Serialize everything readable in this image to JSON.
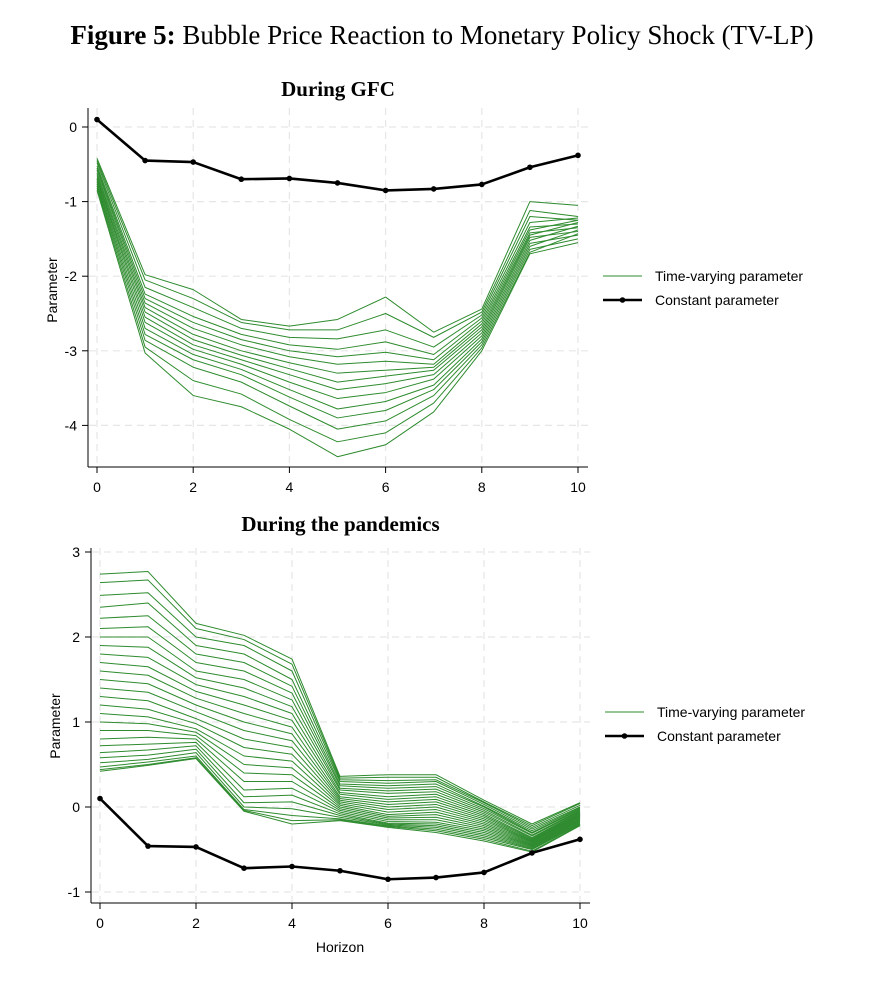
{
  "figure": {
    "label": "Figure 5:",
    "title": "Bubble Price Reaction to Monetary Policy Shock (TV-LP)"
  },
  "colors": {
    "time_varying": "#2e8b2e",
    "constant": "#000000",
    "grid": "#e6e6e6"
  },
  "chart_data": [
    {
      "type": "line",
      "title": "During GFC",
      "xlabel": "",
      "ylabel": "Parameter",
      "xlim": [
        0,
        10
      ],
      "ylim": [
        -4.55,
        0.2
      ],
      "xticks": [
        0,
        2,
        4,
        6,
        8,
        10
      ],
      "yticks": [
        0,
        -1,
        -2,
        -3,
        -4
      ],
      "grid": true,
      "legend_position": "right",
      "legend": [
        "Time-varying parameter",
        "Constant parameter"
      ],
      "x": [
        0,
        1,
        2,
        3,
        4,
        5,
        6,
        7,
        8,
        9,
        10
      ],
      "constant": {
        "name": "Constant parameter",
        "values": [
          0.1,
          -0.45,
          -0.47,
          -0.7,
          -0.69,
          -0.75,
          -0.85,
          -0.83,
          -0.77,
          -0.54,
          -0.38
        ]
      },
      "time_varying": {
        "name": "Time-varying parameter",
        "series": [
          [
            -0.42,
            -1.98,
            -2.18,
            -2.58,
            -2.67,
            -2.58,
            -2.28,
            -2.75,
            -2.44,
            -1.0,
            -1.05
          ],
          [
            -0.45,
            -2.05,
            -2.3,
            -2.62,
            -2.72,
            -2.72,
            -2.5,
            -2.82,
            -2.48,
            -1.12,
            -1.2
          ],
          [
            -0.48,
            -2.15,
            -2.42,
            -2.7,
            -2.82,
            -2.84,
            -2.72,
            -2.95,
            -2.52,
            -1.2,
            -1.25
          ],
          [
            -0.52,
            -2.24,
            -2.54,
            -2.78,
            -2.92,
            -2.98,
            -2.88,
            -3.05,
            -2.56,
            -1.28,
            -1.22
          ],
          [
            -0.55,
            -2.3,
            -2.62,
            -2.85,
            -3.0,
            -3.08,
            -3.02,
            -3.12,
            -2.6,
            -1.34,
            -1.3
          ],
          [
            -0.58,
            -2.36,
            -2.7,
            -2.92,
            -3.08,
            -3.18,
            -3.14,
            -3.18,
            -2.64,
            -1.38,
            -1.25
          ],
          [
            -0.62,
            -2.42,
            -2.78,
            -3.0,
            -3.16,
            -3.3,
            -3.26,
            -3.22,
            -2.68,
            -1.42,
            -1.35
          ],
          [
            -0.65,
            -2.48,
            -2.85,
            -3.06,
            -3.24,
            -3.42,
            -3.34,
            -3.26,
            -2.72,
            -1.45,
            -1.28
          ],
          [
            -0.68,
            -2.55,
            -2.92,
            -3.12,
            -3.32,
            -3.52,
            -3.44,
            -3.32,
            -2.76,
            -1.48,
            -1.4
          ],
          [
            -0.7,
            -2.62,
            -2.98,
            -3.18,
            -3.42,
            -3.64,
            -3.56,
            -3.38,
            -2.8,
            -1.52,
            -1.33
          ],
          [
            -0.73,
            -2.7,
            -3.05,
            -3.25,
            -3.52,
            -3.78,
            -3.68,
            -3.46,
            -2.84,
            -1.56,
            -1.45
          ],
          [
            -0.76,
            -2.78,
            -3.12,
            -3.32,
            -3.62,
            -3.9,
            -3.8,
            -3.52,
            -2.88,
            -1.6,
            -1.38
          ],
          [
            -0.79,
            -2.86,
            -3.22,
            -3.42,
            -3.74,
            -4.05,
            -3.94,
            -3.6,
            -2.92,
            -1.64,
            -1.5
          ],
          [
            -0.82,
            -2.95,
            -3.4,
            -3.58,
            -3.92,
            -4.22,
            -4.1,
            -3.7,
            -2.96,
            -1.68,
            -1.43
          ],
          [
            -0.85,
            -3.03,
            -3.6,
            -3.75,
            -4.05,
            -4.42,
            -4.26,
            -3.82,
            -3.0,
            -1.7,
            -1.55
          ]
        ]
      }
    },
    {
      "type": "line",
      "title": "During the pandemics",
      "xlabel": "Horizon",
      "ylabel": "Parameter",
      "xlim": [
        0,
        10
      ],
      "ylim": [
        -1.15,
        3.05
      ],
      "xticks": [
        0,
        2,
        4,
        6,
        8,
        10
      ],
      "yticks": [
        3,
        2,
        1,
        0,
        -1
      ],
      "grid": true,
      "legend_position": "right",
      "legend": [
        "Time-varying parameter",
        "Constant parameter"
      ],
      "x": [
        0,
        1,
        2,
        3,
        4,
        5,
        6,
        7,
        8,
        9,
        10
      ],
      "constant": {
        "name": "Constant parameter",
        "values": [
          0.1,
          -0.46,
          -0.47,
          -0.72,
          -0.7,
          -0.75,
          -0.85,
          -0.83,
          -0.77,
          -0.54,
          -0.38
        ]
      },
      "time_varying": {
        "name": "Time-varying parameter",
        "series": [
          [
            2.74,
            2.77,
            2.16,
            2.02,
            1.74,
            0.36,
            0.38,
            0.38,
            0.08,
            -0.2,
            0.05
          ],
          [
            2.64,
            2.67,
            2.1,
            1.97,
            1.68,
            0.34,
            0.35,
            0.35,
            0.06,
            -0.22,
            0.04
          ],
          [
            2.49,
            2.52,
            2.0,
            1.9,
            1.6,
            0.32,
            0.31,
            0.32,
            0.05,
            -0.24,
            0.02
          ],
          [
            2.35,
            2.4,
            1.9,
            1.8,
            1.5,
            0.3,
            0.28,
            0.3,
            0.03,
            -0.26,
            0.0
          ],
          [
            2.22,
            2.25,
            1.8,
            1.7,
            1.42,
            0.27,
            0.25,
            0.27,
            0.01,
            -0.28,
            -0.01
          ],
          [
            2.1,
            2.12,
            1.7,
            1.6,
            1.34,
            0.25,
            0.22,
            0.24,
            0.0,
            -0.3,
            -0.02
          ],
          [
            2.0,
            2.0,
            1.6,
            1.5,
            1.26,
            0.22,
            0.19,
            0.21,
            -0.02,
            -0.31,
            -0.03
          ],
          [
            1.9,
            1.88,
            1.52,
            1.4,
            1.18,
            0.2,
            0.16,
            0.18,
            -0.04,
            -0.33,
            -0.04
          ],
          [
            1.8,
            1.76,
            1.44,
            1.3,
            1.1,
            0.17,
            0.12,
            0.15,
            -0.06,
            -0.34,
            -0.05
          ],
          [
            1.7,
            1.65,
            1.36,
            1.2,
            1.02,
            0.15,
            0.09,
            0.12,
            -0.08,
            -0.36,
            -0.06
          ],
          [
            1.6,
            1.55,
            1.28,
            1.1,
            0.94,
            0.12,
            0.06,
            0.09,
            -0.1,
            -0.37,
            -0.07
          ],
          [
            1.5,
            1.45,
            1.2,
            1.0,
            0.86,
            0.1,
            0.03,
            0.06,
            -0.12,
            -0.38,
            -0.08
          ],
          [
            1.4,
            1.35,
            1.12,
            0.9,
            0.78,
            0.08,
            0.0,
            0.03,
            -0.14,
            -0.39,
            -0.09
          ],
          [
            1.3,
            1.25,
            1.04,
            0.8,
            0.7,
            0.06,
            -0.03,
            0.0,
            -0.16,
            -0.4,
            -0.1
          ],
          [
            1.2,
            1.15,
            0.98,
            0.7,
            0.62,
            0.04,
            -0.06,
            -0.03,
            -0.18,
            -0.41,
            -0.11
          ],
          [
            1.1,
            1.06,
            0.92,
            0.6,
            0.54,
            0.02,
            -0.09,
            -0.06,
            -0.2,
            -0.42,
            -0.12
          ],
          [
            1.0,
            0.98,
            0.88,
            0.5,
            0.46,
            0.0,
            -0.11,
            -0.09,
            -0.22,
            -0.43,
            -0.13
          ],
          [
            0.9,
            0.9,
            0.84,
            0.4,
            0.38,
            -0.02,
            -0.13,
            -0.12,
            -0.24,
            -0.44,
            -0.14
          ],
          [
            0.8,
            0.82,
            0.8,
            0.3,
            0.3,
            -0.04,
            -0.15,
            -0.15,
            -0.26,
            -0.45,
            -0.15
          ],
          [
            0.72,
            0.74,
            0.76,
            0.2,
            0.22,
            -0.06,
            -0.17,
            -0.18,
            -0.28,
            -0.46,
            -0.16
          ],
          [
            0.64,
            0.67,
            0.72,
            0.12,
            0.14,
            -0.08,
            -0.19,
            -0.2,
            -0.3,
            -0.47,
            -0.17
          ],
          [
            0.58,
            0.61,
            0.68,
            0.05,
            0.06,
            -0.1,
            -0.2,
            -0.22,
            -0.32,
            -0.48,
            -0.18
          ],
          [
            0.52,
            0.56,
            0.64,
            0.0,
            -0.02,
            -0.12,
            -0.21,
            -0.24,
            -0.34,
            -0.49,
            -0.19
          ],
          [
            0.47,
            0.53,
            0.6,
            -0.03,
            -0.1,
            -0.14,
            -0.22,
            -0.26,
            -0.36,
            -0.5,
            -0.2
          ],
          [
            0.44,
            0.5,
            0.58,
            -0.04,
            -0.16,
            -0.15,
            -0.23,
            -0.28,
            -0.38,
            -0.52,
            -0.21
          ],
          [
            0.42,
            0.49,
            0.57,
            -0.05,
            -0.2,
            -0.16,
            -0.24,
            -0.3,
            -0.4,
            -0.53,
            -0.22
          ]
        ]
      }
    }
  ]
}
